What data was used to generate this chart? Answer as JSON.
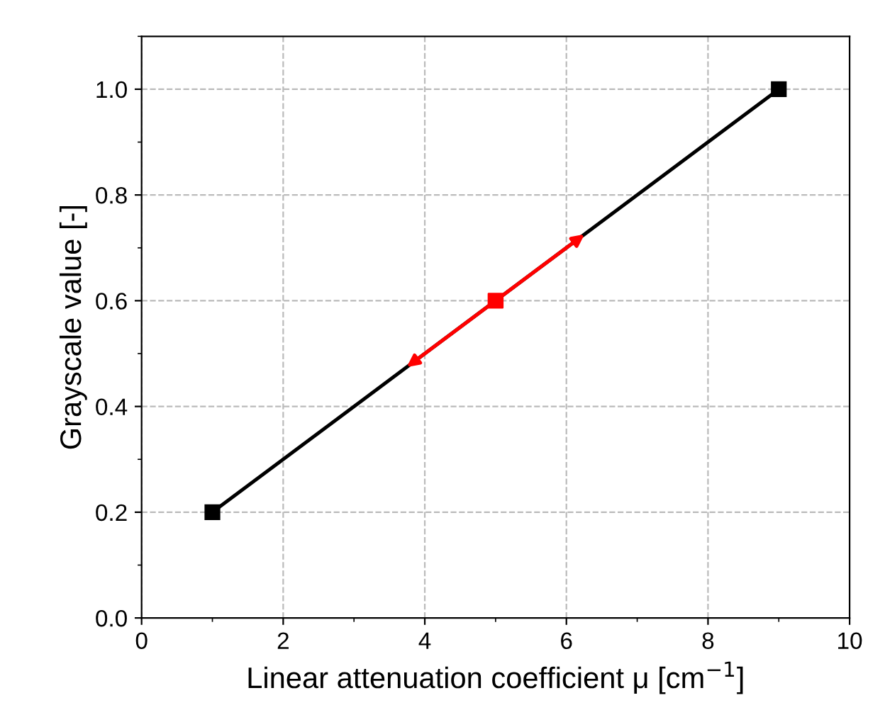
{
  "chart_data": {
    "type": "line",
    "xlabel": "Linear attenuation coefficient μ [cm$^{−1}$]",
    "ylabel": "Grayscale value [-]",
    "xlim": [
      0,
      10
    ],
    "ylim": [
      0,
      1.1
    ],
    "xticks": [
      0,
      2,
      4,
      6,
      8,
      10
    ],
    "yticks": [
      {
        "value": 0,
        "label": "0.0"
      },
      {
        "value": 0.2,
        "label": "0.2"
      },
      {
        "value": 0.4,
        "label": "0.4"
      },
      {
        "value": 0.6,
        "label": "0.6"
      },
      {
        "value": 0.8,
        "label": "0.8"
      },
      {
        "value": 1,
        "label": "1.0"
      }
    ],
    "grid": true,
    "marker": "square",
    "line_style": "solid",
    "series": [
      {
        "color": "#000000",
        "x": [
          1,
          9
        ],
        "values": [
          0.2,
          1.0
        ]
      },
      {
        "type": "scatter",
        "color": "#ff0000",
        "x": [
          5
        ],
        "values": [
          0.6
        ]
      }
    ]
  }
}
